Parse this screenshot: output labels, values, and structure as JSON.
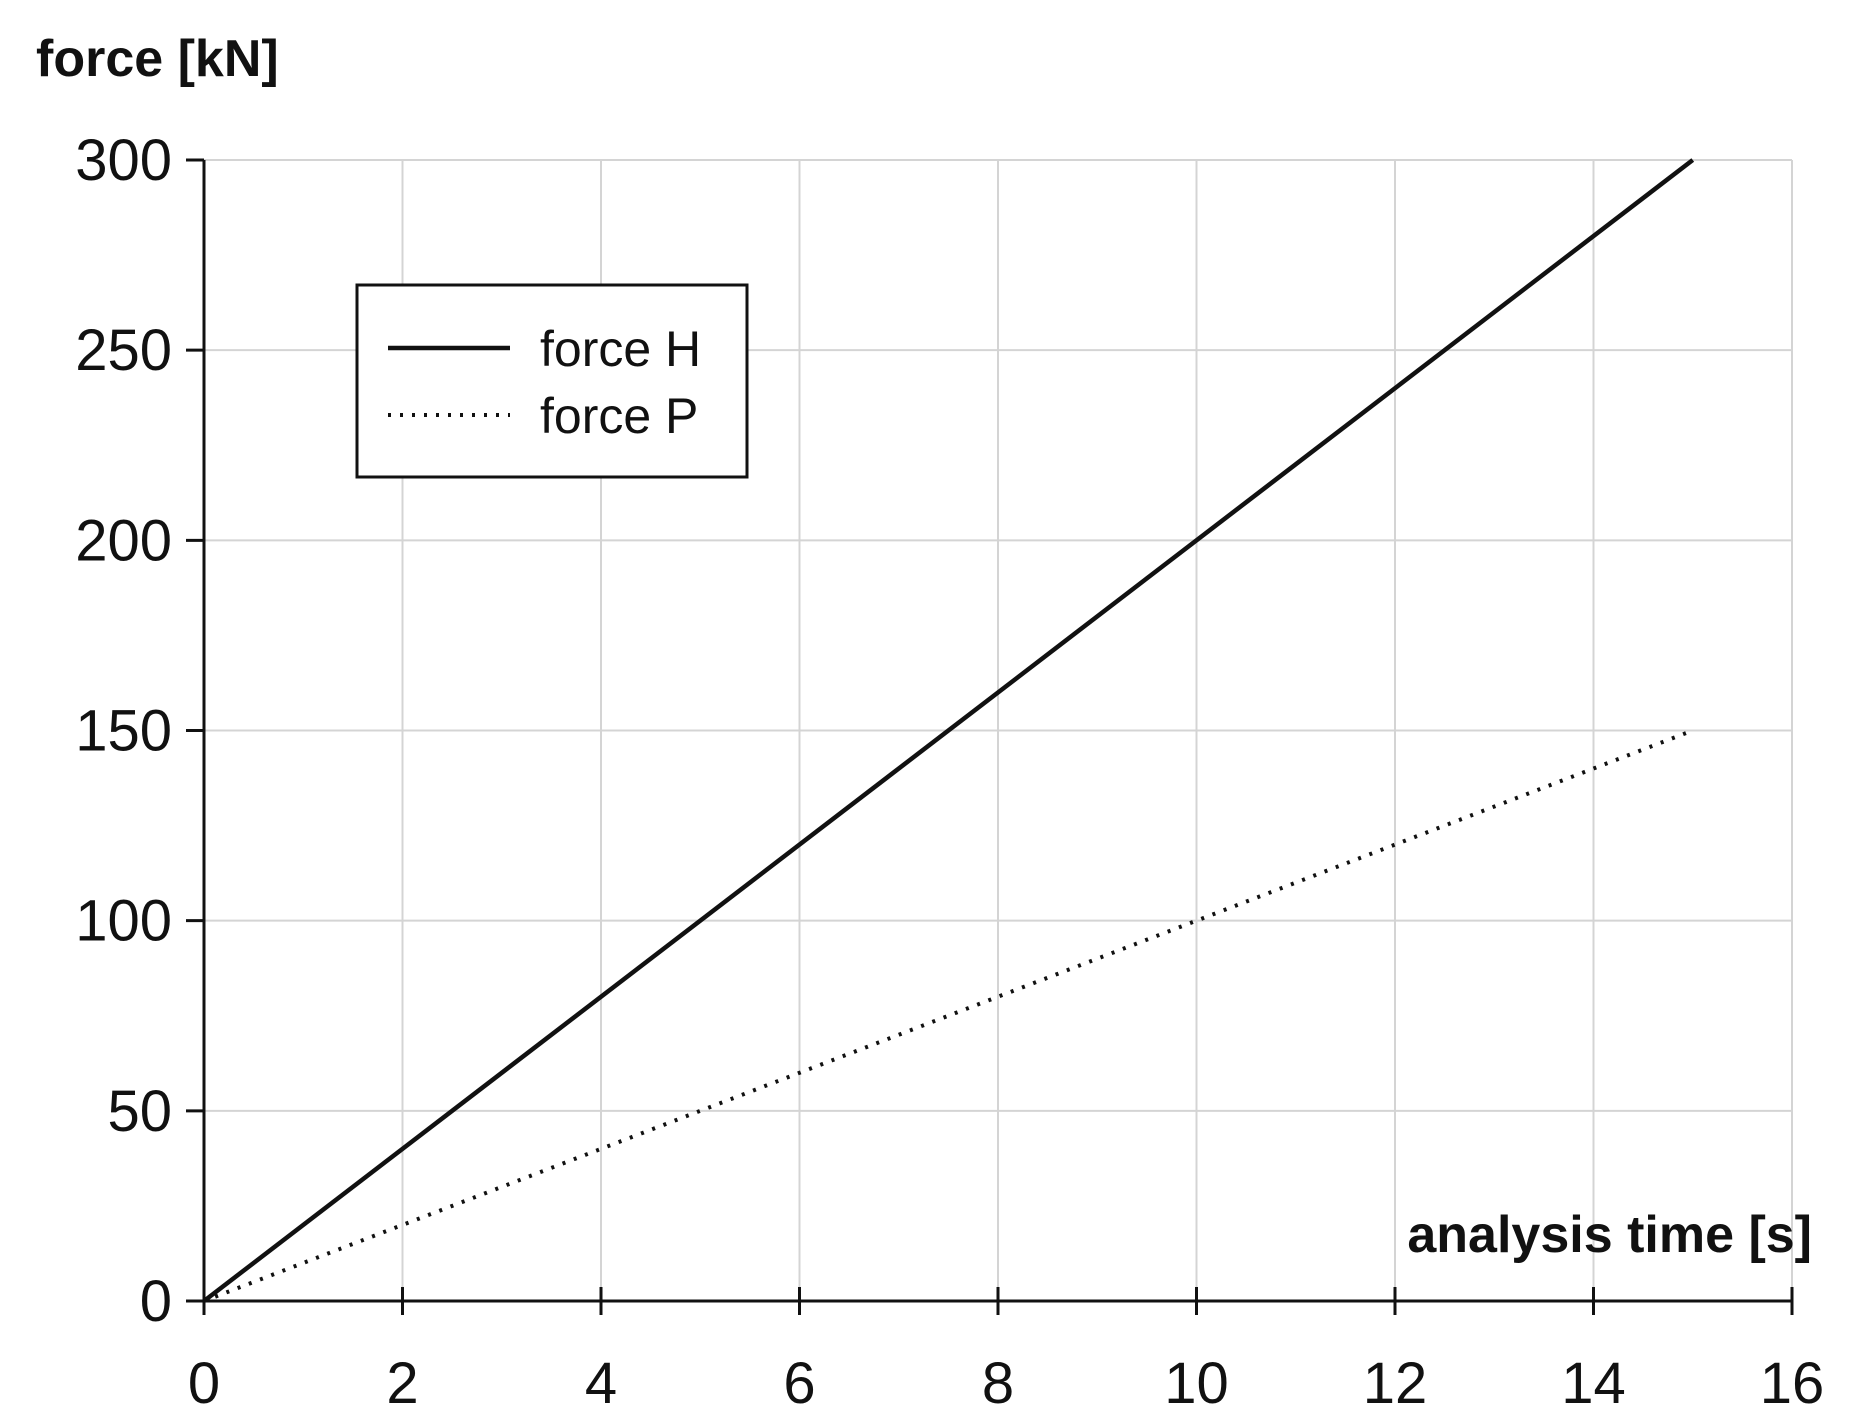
{
  "chart_data": {
    "type": "line",
    "title": "",
    "xlabel": "analysis time [s]",
    "ylabel": "force [kN]",
    "xlim": [
      0,
      16
    ],
    "ylim": [
      0,
      300
    ],
    "xticks": [
      0,
      2,
      4,
      6,
      8,
      10,
      12,
      14,
      16
    ],
    "yticks": [
      0,
      50,
      100,
      150,
      200,
      250,
      300
    ],
    "grid": true,
    "legend_position": "top-left",
    "series": [
      {
        "name": "force H",
        "style": "solid",
        "color": "#111111",
        "x": [
          0,
          15
        ],
        "y": [
          0,
          300
        ]
      },
      {
        "name": "force P",
        "style": "dotted",
        "color": "#111111",
        "x": [
          0,
          15
        ],
        "y": [
          0,
          150
        ]
      }
    ]
  }
}
